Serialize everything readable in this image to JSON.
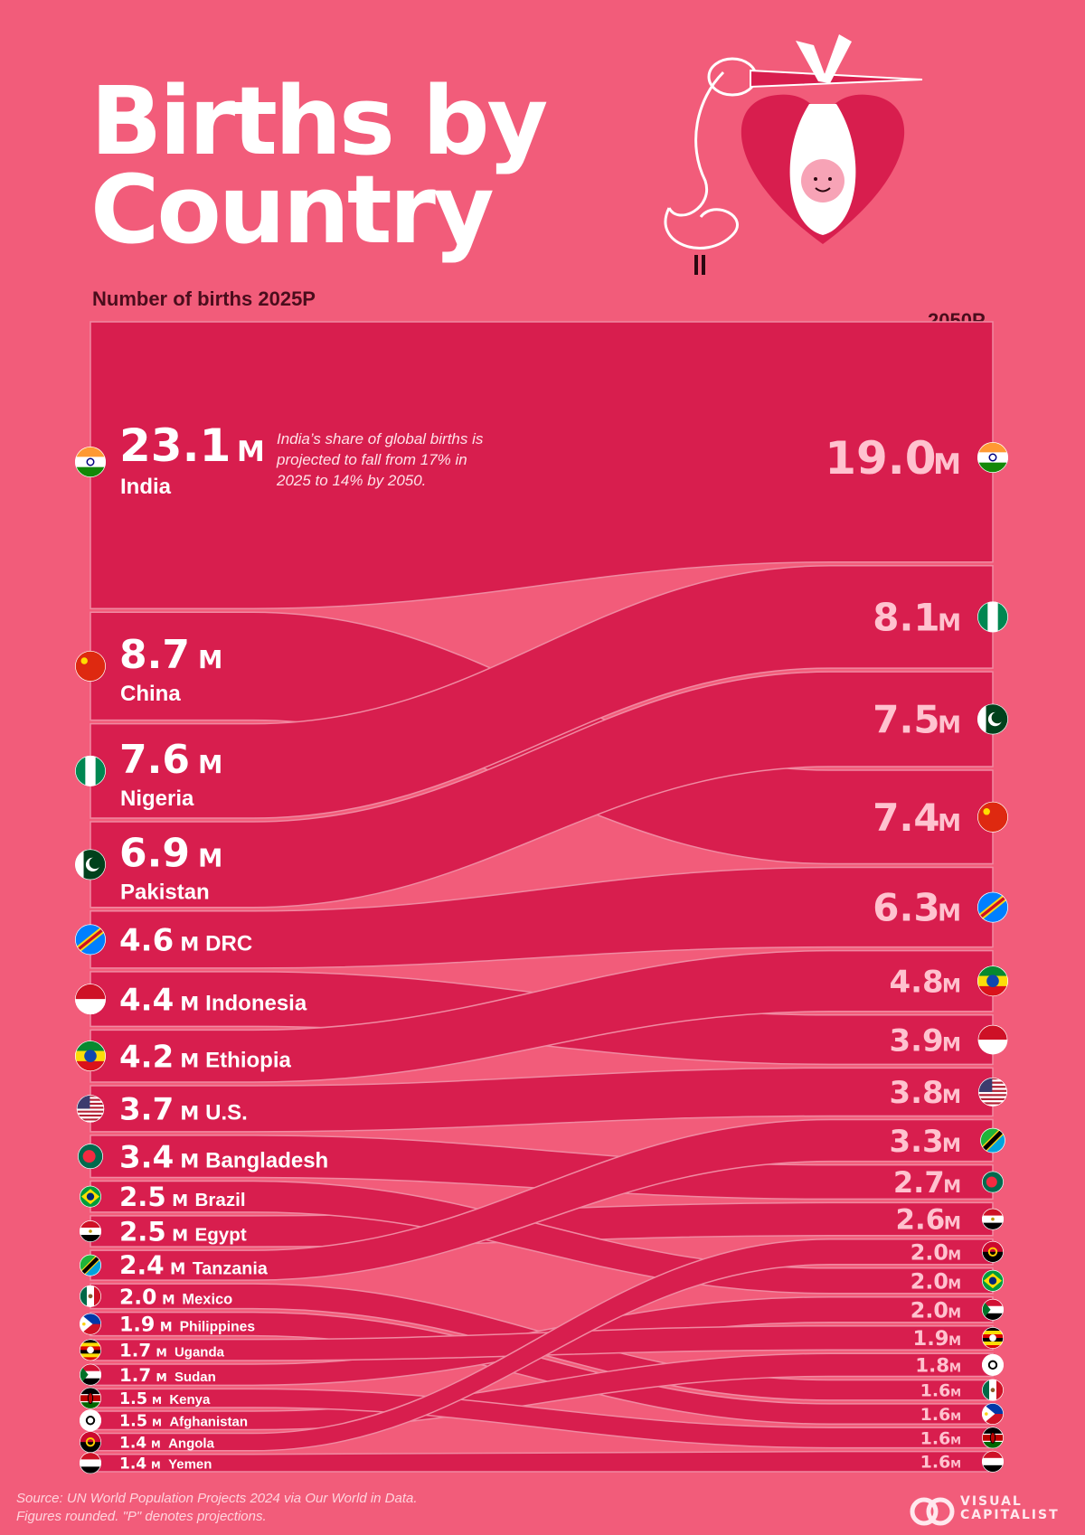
{
  "title_line1": "Births by",
  "title_line2": "Country",
  "subtitle_prefix": "Number of births",
  "subtitle_year": "2025P",
  "right_year": "2050P",
  "note": "India’s share of global births is projected to fall from 17% in 2025 to 14% by 2050.",
  "source_line1": "Source: UN World Population Projects 2024 via Our World in Data.",
  "source_line2": "Figures rounded. \"P\" denotes projections.",
  "brand_line1": "VISUAL",
  "brand_line2": "CAPITALIST",
  "colors": {
    "background": "#F25C7A",
    "band": "#D81E4E",
    "band_edge": "#F08AA2",
    "value_left": "#FFFFFF",
    "value_right": "#FFC2CF"
  },
  "chart_data": {
    "type": "sankey",
    "unit": "M",
    "left_label": "2025P",
    "right_label": "2050P",
    "flows": [
      {
        "country": "India",
        "flag": "india",
        "v2025": 23.1,
        "v2050": 19.0,
        "label2025": "23.1M",
        "label2050": "19.0M"
      },
      {
        "country": "China",
        "flag": "china",
        "v2025": 8.7,
        "v2050": 7.4,
        "label2025": "8.7M",
        "label2050": "7.4M"
      },
      {
        "country": "Nigeria",
        "flag": "nigeria",
        "v2025": 7.6,
        "v2050": 8.1,
        "label2025": "7.6M",
        "label2050": "8.1M"
      },
      {
        "country": "Pakistan",
        "flag": "pakistan",
        "v2025": 6.9,
        "v2050": 7.5,
        "label2025": "6.9M",
        "label2050": "7.5M"
      },
      {
        "country": "DRC",
        "flag": "drc",
        "v2025": 4.6,
        "v2050": 6.3,
        "label2025": "4.6M",
        "label2050": "6.3M"
      },
      {
        "country": "Indonesia",
        "flag": "indonesia",
        "v2025": 4.4,
        "v2050": 3.9,
        "label2025": "4.4M",
        "label2050": "3.9M"
      },
      {
        "country": "Ethiopia",
        "flag": "ethiopia",
        "v2025": 4.2,
        "v2050": 4.8,
        "label2025": "4.2M",
        "label2050": "4.8M"
      },
      {
        "country": "U.S.",
        "flag": "usa",
        "v2025": 3.7,
        "v2050": 3.8,
        "label2025": "3.7M",
        "label2050": "3.8M"
      },
      {
        "country": "Bangladesh",
        "flag": "bangladesh",
        "v2025": 3.4,
        "v2050": 2.7,
        "label2025": "3.4M",
        "label2050": "2.7M"
      },
      {
        "country": "Brazil",
        "flag": "brazil",
        "v2025": 2.5,
        "v2050": 2.0,
        "label2025": "2.5M",
        "label2050": "2.0M"
      },
      {
        "country": "Egypt",
        "flag": "egypt",
        "v2025": 2.5,
        "v2050": 2.6,
        "label2025": "2.5M",
        "label2050": "2.6M"
      },
      {
        "country": "Tanzania",
        "flag": "tanzania",
        "v2025": 2.4,
        "v2050": 3.3,
        "label2025": "2.4M",
        "label2050": "3.3M"
      },
      {
        "country": "Mexico",
        "flag": "mexico",
        "v2025": 2.0,
        "v2050": 1.6,
        "label2025": "2.0M",
        "label2050": "1.6M"
      },
      {
        "country": "Philippines",
        "flag": "philippines",
        "v2025": 1.9,
        "v2050": 1.6,
        "label2025": "1.9M",
        "label2050": "1.6M"
      },
      {
        "country": "Uganda",
        "flag": "uganda",
        "v2025": 1.7,
        "v2050": 1.9,
        "label2025": "1.7M",
        "label2050": "1.9M"
      },
      {
        "country": "Sudan",
        "flag": "sudan",
        "v2025": 1.7,
        "v2050": 2.0,
        "label2025": "1.7M",
        "label2050": "2.0M"
      },
      {
        "country": "Kenya",
        "flag": "kenya",
        "v2025": 1.5,
        "v2050": 1.6,
        "label2025": "1.5M",
        "label2050": "1.6M"
      },
      {
        "country": "Afghanistan",
        "flag": "afghanistan",
        "v2025": 1.5,
        "v2050": 1.8,
        "label2025": "1.5M",
        "label2050": "1.8M"
      },
      {
        "country": "Angola",
        "flag": "angola",
        "v2025": 1.4,
        "v2050": 2.0,
        "label2025": "1.4M",
        "label2050": "2.0M"
      },
      {
        "country": "Yemen",
        "flag": "yemen",
        "v2025": 1.4,
        "v2050": 1.6,
        "label2025": "1.4M",
        "label2050": "1.6M"
      }
    ],
    "right_order": [
      "India",
      "Nigeria",
      "Pakistan",
      "China",
      "DRC",
      "Ethiopia",
      "Indonesia",
      "U.S.",
      "Tanzania",
      "Bangladesh",
      "Egypt",
      "Angola",
      "Brazil",
      "Sudan",
      "Uganda",
      "Afghanistan",
      "Mexico",
      "Philippines",
      "Kenya",
      "Yemen"
    ]
  }
}
